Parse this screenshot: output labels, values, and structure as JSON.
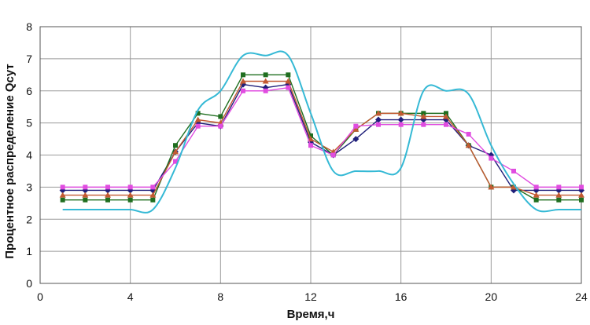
{
  "chart_data": {
    "type": "line",
    "title": "",
    "xlabel": "Время,ч",
    "ylabel": "Процентное распределение Qсут",
    "xlim": [
      0,
      24
    ],
    "ylim": [
      0,
      8
    ],
    "xticks": [
      0,
      4,
      8,
      12,
      16,
      20,
      24
    ],
    "yticks": [
      0,
      1,
      2,
      3,
      4,
      5,
      6,
      7,
      8
    ],
    "grid": true,
    "legend": "none",
    "x": [
      1,
      2,
      3,
      4,
      5,
      6,
      7,
      8,
      9,
      10,
      11,
      12,
      13,
      14,
      15,
      16,
      17,
      18,
      19,
      20,
      21,
      22,
      23,
      24
    ],
    "series": [
      {
        "color": "#1f1f7a",
        "marker": "diamond",
        "smooth": false,
        "values": [
          2.9,
          2.9,
          2.9,
          2.9,
          2.9,
          4.1,
          5.0,
          4.9,
          6.2,
          6.1,
          6.2,
          4.4,
          4.0,
          4.5,
          5.1,
          5.1,
          5.1,
          5.1,
          4.3,
          4.0,
          2.9,
          2.9,
          2.9,
          2.9
        ]
      },
      {
        "color": "#1f6e1f",
        "marker": "square",
        "smooth": false,
        "values": [
          2.6,
          2.6,
          2.6,
          2.6,
          2.6,
          4.3,
          5.3,
          5.2,
          6.5,
          6.5,
          6.5,
          4.6,
          4.0,
          4.8,
          5.3,
          5.3,
          5.3,
          5.3,
          4.3,
          3.0,
          3.0,
          2.6,
          2.6,
          2.6
        ]
      },
      {
        "color": "#c25a32",
        "marker": "triangle",
        "smooth": false,
        "values": [
          2.75,
          2.75,
          2.75,
          2.75,
          2.75,
          4.1,
          5.1,
          5.0,
          6.3,
          6.3,
          6.3,
          4.5,
          4.1,
          4.8,
          5.3,
          5.3,
          5.2,
          5.2,
          4.3,
          3.0,
          3.0,
          2.75,
          2.75,
          2.75
        ]
      },
      {
        "color": "#e04ce0",
        "marker": "square",
        "smooth": false,
        "values": [
          3.0,
          3.0,
          3.0,
          3.0,
          3.0,
          3.8,
          4.9,
          4.9,
          6.0,
          6.0,
          6.1,
          4.3,
          4.0,
          4.9,
          4.95,
          4.95,
          4.95,
          4.95,
          4.65,
          3.9,
          3.5,
          3.0,
          3.0,
          3.0
        ]
      },
      {
        "color": "#35b9d5",
        "marker": "none",
        "smooth": true,
        "values": [
          2.3,
          2.3,
          2.3,
          2.3,
          2.3,
          3.6,
          5.4,
          6.0,
          7.1,
          7.1,
          7.1,
          5.3,
          3.5,
          3.5,
          3.5,
          3.6,
          6.0,
          6.0,
          5.9,
          4.3,
          3.1,
          2.3,
          2.3,
          2.3
        ]
      }
    ]
  }
}
